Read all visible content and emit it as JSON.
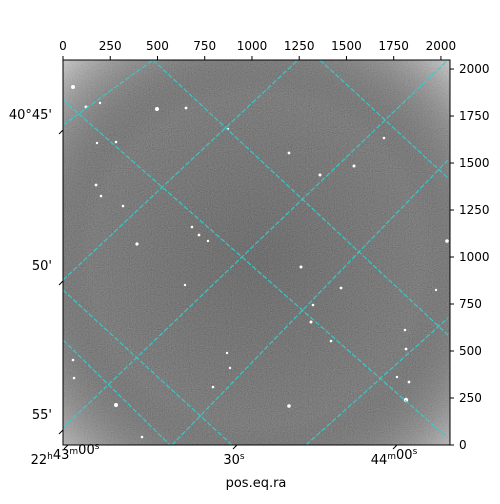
{
  "chart_data": {
    "type": "image",
    "xlabel": "pos.eq.ra",
    "ylabel": "",
    "pixel_axes": {
      "x_ticks": [
        0,
        250,
        500,
        750,
        1000,
        1250,
        1500,
        1750,
        2000
      ],
      "y_ticks": [
        0,
        250,
        500,
        750,
        1000,
        1250,
        1500,
        1750,
        2000
      ],
      "xlim": [
        0,
        2048
      ],
      "ylim": [
        0,
        2048
      ]
    },
    "world_axes": {
      "dec_ticks": [
        "40°45'",
        "50'",
        "55'"
      ],
      "ra_ticks": [
        {
          "main": "22",
          "sup1": "h",
          "mid": "43",
          "sup2": "m",
          "tail": "00",
          "sup3": "s"
        },
        {
          "main": "",
          "sup1": "",
          "mid": "",
          "sup2": "",
          "tail": "30",
          "sup3": "s"
        },
        {
          "main": "",
          "sup1": "",
          "mid": "44",
          "sup2": "m",
          "tail": "00",
          "sup3": "s"
        }
      ]
    },
    "grid": true,
    "grid_color": "#30d0d0",
    "background": "#3c3c3c"
  }
}
